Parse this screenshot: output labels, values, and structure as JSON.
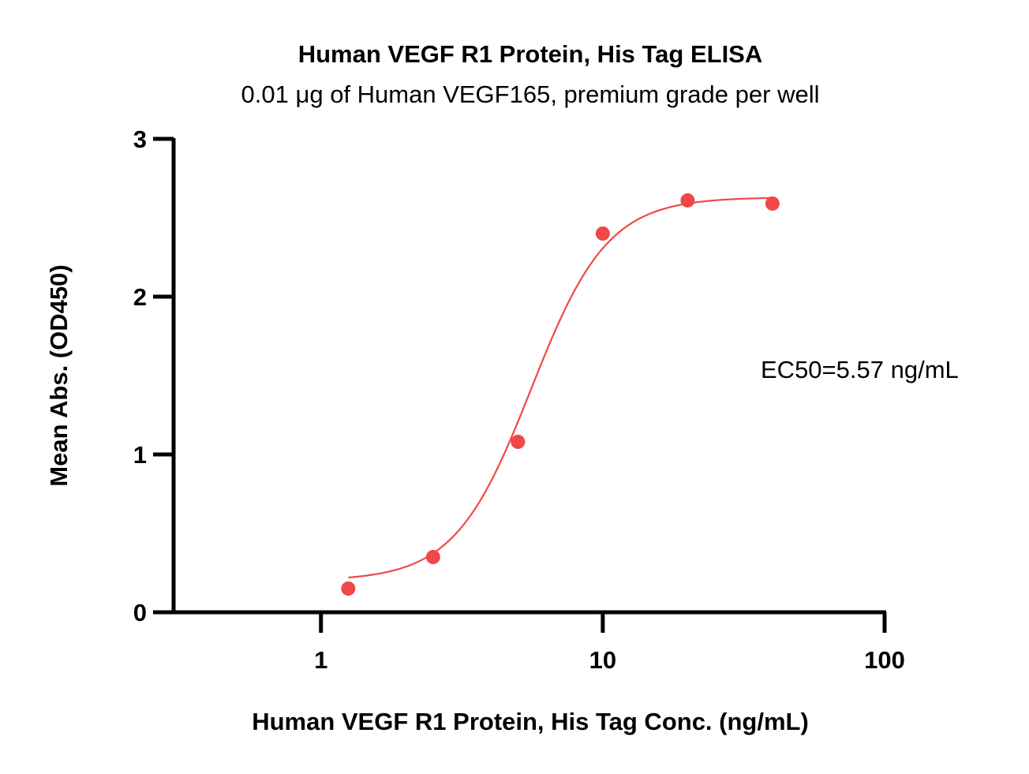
{
  "chart_data": {
    "type": "scatter",
    "title": "Human VEGF R1 Protein, His Tag ELISA",
    "subtitle": "0.01 μg of Human VEGF165, premium grade per well",
    "xlabel": "Human VEGF R1 Protein, His Tag Conc. (ng/mL)",
    "ylabel": "Mean Abs. (OD450)",
    "x_scale": "log",
    "xlim": [
      0.3,
      100
    ],
    "ylim": [
      0,
      3
    ],
    "x_ticks": [
      1,
      10,
      100
    ],
    "x_tick_labels": [
      "1",
      "10",
      "100"
    ],
    "y_ticks": [
      0,
      1,
      2,
      3
    ],
    "y_tick_labels": [
      "0",
      "1",
      "2",
      "3"
    ],
    "grid": false,
    "color": "#f04848",
    "series": [
      {
        "x": [
          1.25,
          2.5,
          5,
          10,
          20,
          40
        ],
        "y": [
          0.15,
          0.35,
          1.08,
          2.4,
          2.61,
          2.59
        ]
      }
    ],
    "fit": {
      "bottom": 0.2,
      "top": 2.63,
      "ec50": 5.57,
      "hill": 3.2,
      "x_range": [
        1.25,
        40
      ]
    },
    "annotation": "EC50=5.57 ng/mL"
  }
}
